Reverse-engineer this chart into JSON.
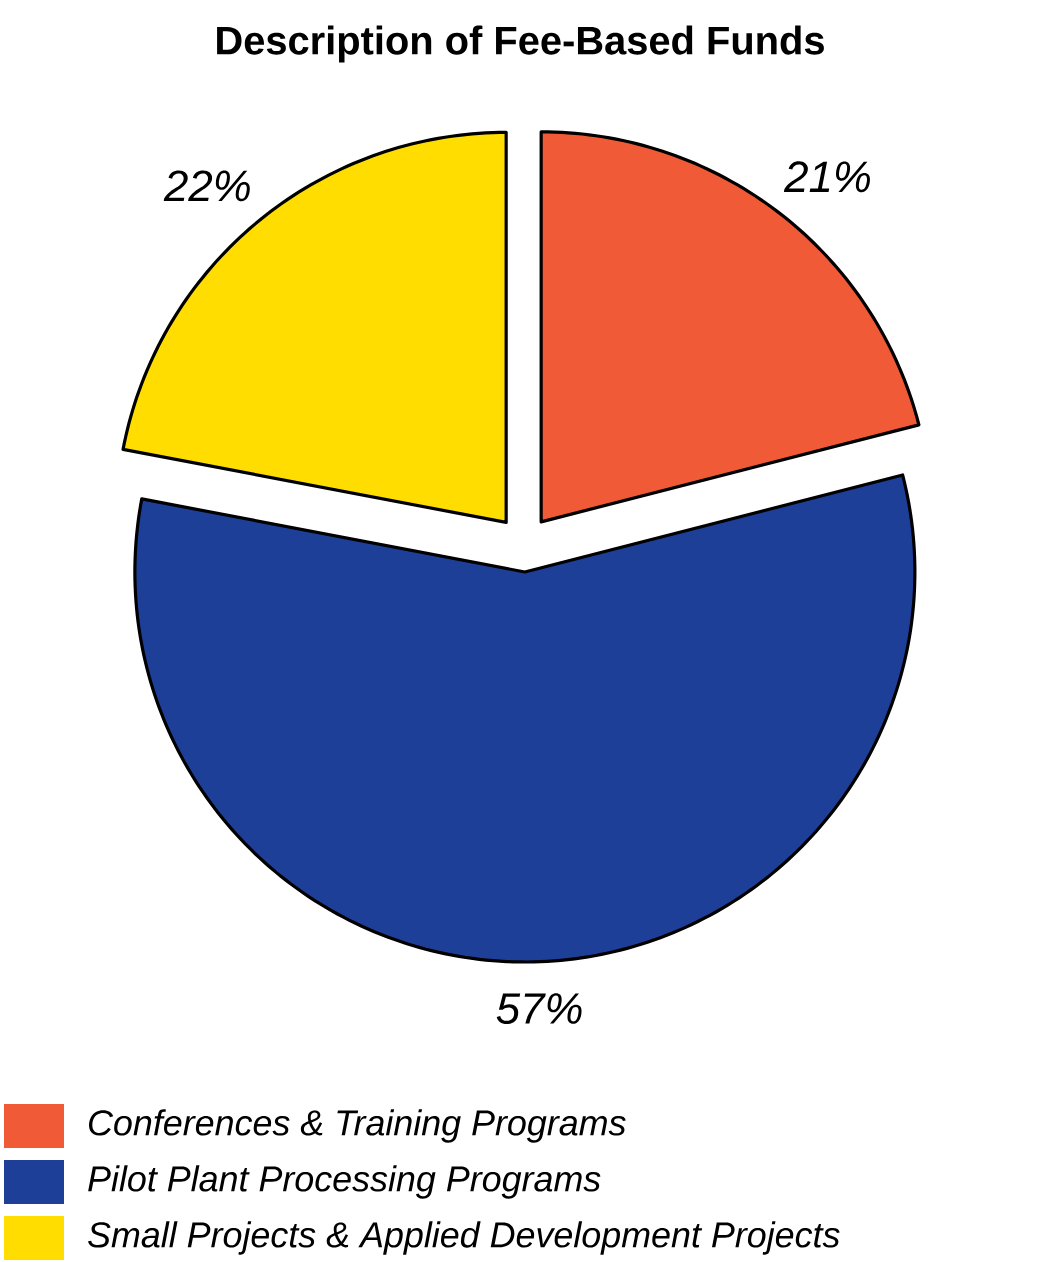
{
  "chart_data": {
    "type": "pie",
    "title": "Description of Fee-Based Funds",
    "categories": [
      "Conferences & Training Programs",
      "Pilot Plant Processing Programs",
      "Small Projects & Applied Development Projects"
    ],
    "values": [
      21,
      57,
      22
    ],
    "colors": [
      "#f15a36",
      "#1e3f98",
      "#ffdd00"
    ],
    "value_labels": [
      "21%",
      "57%",
      "22%"
    ],
    "legend": "bottom"
  }
}
